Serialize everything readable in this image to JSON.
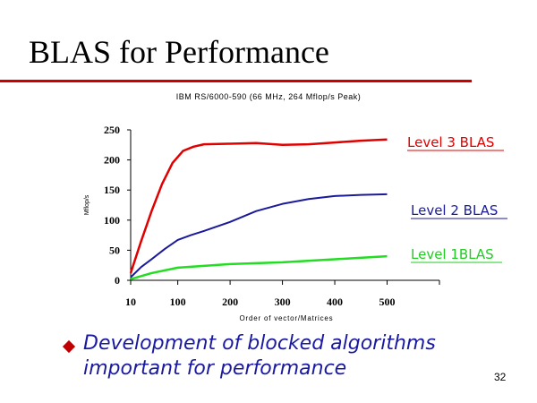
{
  "slide": {
    "title": "BLAS for Performance",
    "bullet": "Development of blocked algorithms important for performance",
    "page_number": "32",
    "accent_color": "#cc0000",
    "bullet_color": "#c00000",
    "text_color": "#1a1aa0"
  },
  "chart_data": {
    "type": "line",
    "title": "IBM RS/6000-590 (66 MHz, 264 Mflop/s Peak)",
    "xlabel": "Order of vector/Matrices",
    "ylabel": "Mflop/s",
    "xlim": [
      10,
      600
    ],
    "ylim": [
      0,
      250
    ],
    "xticks": [
      10,
      100,
      200,
      300,
      400,
      500
    ],
    "yticks": [
      0,
      50,
      100,
      150,
      200,
      250
    ],
    "legend_placement": "right, labels beside each line",
    "grid": false,
    "series": [
      {
        "name": "Level 3 BLAS",
        "color": "#e00000",
        "x": [
          10,
          30,
          50,
          70,
          90,
          110,
          130,
          150,
          200,
          250,
          300,
          350,
          400,
          450,
          500
        ],
        "y": [
          12,
          65,
          115,
          160,
          195,
          215,
          222,
          226,
          227,
          228,
          225,
          226,
          229,
          232,
          234
        ]
      },
      {
        "name": "Level 2 BLAS",
        "color": "#1a1a9a",
        "x": [
          10,
          30,
          50,
          75,
          100,
          125,
          150,
          200,
          250,
          300,
          350,
          400,
          450,
          500
        ],
        "y": [
          5,
          22,
          35,
          52,
          67,
          75,
          82,
          97,
          115,
          127,
          135,
          140,
          142,
          143
        ]
      },
      {
        "name": "Level 1BLAS",
        "color": "#22dd22",
        "x": [
          10,
          50,
          100,
          150,
          200,
          300,
          400,
          500
        ],
        "y": [
          2,
          12,
          21,
          24,
          27,
          30,
          35,
          40
        ]
      }
    ]
  }
}
